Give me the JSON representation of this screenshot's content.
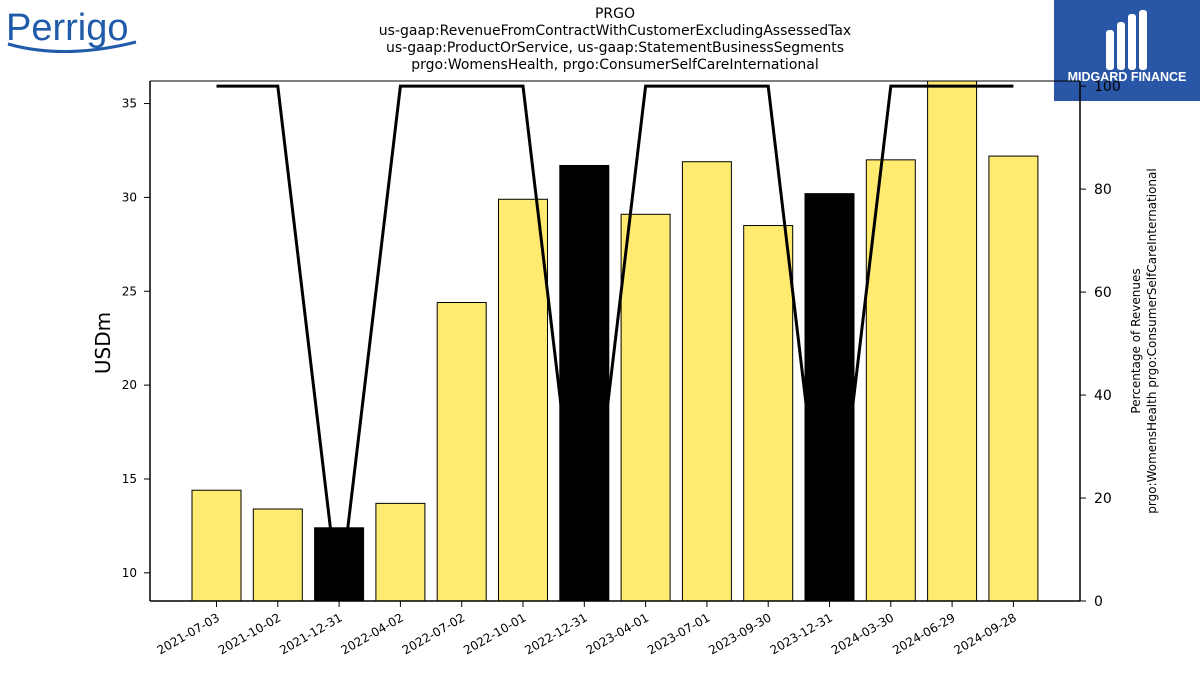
{
  "title_lines": [
    "PRGO",
    "us-gaap:RevenueFromContractWithCustomerExcludingAssessedTax",
    "us-gaap:ProductOrService, us-gaap:StatementBusinessSegments",
    "prgo:WomensHealth, prgo:ConsumerSelfCareInternational"
  ],
  "logos": {
    "left_text": "Perrigo",
    "right_text": "MIDGARD FINANCE",
    "left_color": "#1f5ba8",
    "right_bg": "#2a56a8"
  },
  "chart_data": {
    "type": "bar",
    "categories": [
      "2021-07-03",
      "2021-10-02",
      "2021-12-31",
      "2022-04-02",
      "2022-07-02",
      "2022-10-01",
      "2022-12-31",
      "2023-04-01",
      "2023-07-01",
      "2023-09-30",
      "2023-12-31",
      "2024-03-30",
      "2024-06-29",
      "2024-09-28"
    ],
    "values": [
      14.4,
      13.4,
      12.4,
      13.7,
      24.4,
      29.9,
      31.7,
      29.1,
      31.9,
      28.5,
      30.2,
      32.0,
      36.3,
      32.2
    ],
    "bar_colors": [
      "#ffeb70",
      "#ffeb70",
      "#000000",
      "#ffeb70",
      "#ffeb70",
      "#ffeb70",
      "#000000",
      "#ffeb70",
      "#ffeb70",
      "#ffeb70",
      "#000000",
      "#ffeb70",
      "#ffeb70",
      "#ffeb70"
    ],
    "ylabel": "USDm",
    "ylim": [
      8.5,
      36.2
    ],
    "yticks": [
      10,
      15,
      20,
      25,
      30,
      35
    ],
    "line": {
      "values": [
        100,
        100,
        0,
        100,
        100,
        100,
        0,
        100,
        100,
        100,
        0,
        100,
        100,
        100
      ],
      "color": "#000000"
    },
    "y2label_lines": [
      "Percentage of Revenues",
      "prgo:WomensHealth prgo:ConsumerSelfCareInternational"
    ],
    "y2lim": [
      0,
      101
    ],
    "y2ticks": [
      0,
      20,
      40,
      60,
      80,
      100
    ]
  }
}
